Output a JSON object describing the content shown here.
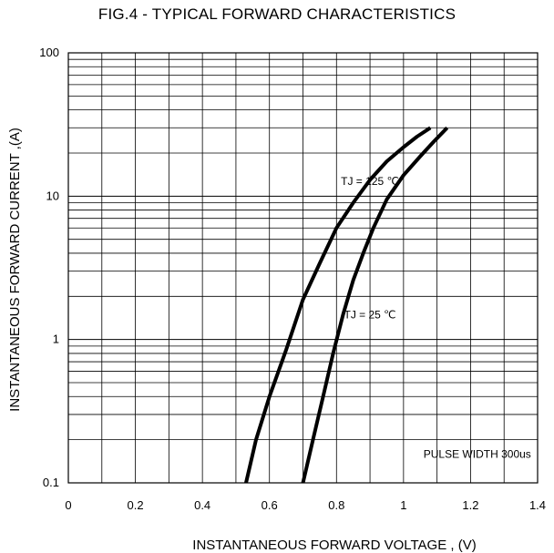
{
  "chart_data": {
    "type": "line",
    "title": "FIG.4 - TYPICAL FORWARD CHARACTERISTICS",
    "xlabel": "INSTANTANEOUS FORWARD VOLTAGE , (V)",
    "ylabel": "INSTANTANEOUS  FORWARD CURRENT ,(A)",
    "xlim": [
      0,
      1.4
    ],
    "ylim": [
      0.1,
      100
    ],
    "yscale": "log",
    "grid": true,
    "x_ticks": [
      "0",
      "0.2",
      "0.4",
      "0.6",
      "0.8",
      "1",
      "1.2",
      "1.4"
    ],
    "y_ticks": [
      "0.1",
      "1",
      "10",
      "100"
    ],
    "series": [
      {
        "name": "TJ = 125 ℃",
        "x": [
          0.53,
          0.56,
          0.6,
          0.65,
          0.7,
          0.75,
          0.8,
          0.85,
          0.9,
          0.95,
          1.0,
          1.04,
          1.08
        ],
        "y": [
          0.1,
          0.2,
          0.4,
          0.85,
          1.9,
          3.4,
          6.0,
          9.0,
          13.0,
          17.5,
          22.0,
          26.0,
          30.0
        ]
      },
      {
        "name": "TJ = 25 ℃",
        "x": [
          0.7,
          0.73,
          0.76,
          0.79,
          0.82,
          0.85,
          0.88,
          0.91,
          0.95,
          1.0,
          1.05,
          1.09,
          1.13
        ],
        "y": [
          0.1,
          0.2,
          0.4,
          0.8,
          1.5,
          2.6,
          4.0,
          6.0,
          9.5,
          14.0,
          19.0,
          24.0,
          30.0
        ]
      }
    ],
    "annotations": [
      {
        "text": "TJ = 125 ℃",
        "x": 0.9,
        "y": 12.0
      },
      {
        "text": "TJ = 25 ℃",
        "x": 0.9,
        "y": 1.4
      },
      {
        "text": "PULSE WIDTH 300us",
        "x": 1.22,
        "y": 0.15
      }
    ],
    "line_color": "#000000",
    "grid_color": "#000000"
  }
}
